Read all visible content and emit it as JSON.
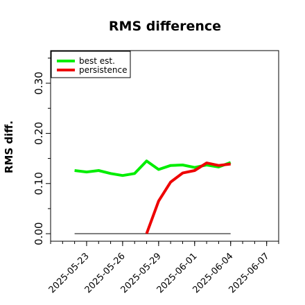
{
  "chart_data": {
    "type": "line",
    "title": "RMS difference",
    "xlabel": "",
    "ylabel": "RMS diff.",
    "x": [
      "2025-05-22",
      "2025-05-23",
      "2025-05-24",
      "2025-05-25",
      "2025-05-26",
      "2025-05-27",
      "2025-05-28",
      "2025-05-29",
      "2025-05-30",
      "2025-05-31",
      "2025-06-01",
      "2025-06-02",
      "2025-06-03",
      "2025-06-04"
    ],
    "xlim": [
      "2025-05-20",
      "2025-06-08"
    ],
    "x_ticks": [
      "2025-05-23",
      "2025-05-26",
      "2025-05-29",
      "2025-06-01",
      "2025-06-04",
      "2025-06-07"
    ],
    "ylim": [
      -0.015,
      0.365
    ],
    "y_ticks": [
      0.0,
      0.1,
      0.2,
      0.3
    ],
    "y_tick_labels": [
      "0.00",
      "0.10",
      "0.20",
      "0.30"
    ],
    "y_minor_ticks": [
      0.05,
      0.15,
      0.25,
      0.35
    ],
    "series": [
      {
        "name": "best est.",
        "color": "#00ee00",
        "values": [
          0.126,
          0.123,
          0.126,
          0.12,
          0.116,
          0.12,
          0.145,
          0.128,
          0.136,
          0.137,
          0.132,
          0.137,
          0.133,
          0.142
        ]
      },
      {
        "name": "persistence",
        "color": "#ee0000",
        "values": [
          null,
          null,
          null,
          null,
          null,
          null,
          0.0,
          0.065,
          0.103,
          0.121,
          0.126,
          0.141,
          0.136,
          0.139
        ]
      },
      {
        "name": "",
        "color": "#555555",
        "values": [
          0,
          0,
          0,
          0,
          0,
          0,
          0,
          0,
          0,
          0,
          0,
          0,
          0,
          0
        ]
      }
    ],
    "legend": {
      "position": "top-left",
      "entries": [
        "best est.",
        "persistence"
      ]
    },
    "grid": false
  }
}
